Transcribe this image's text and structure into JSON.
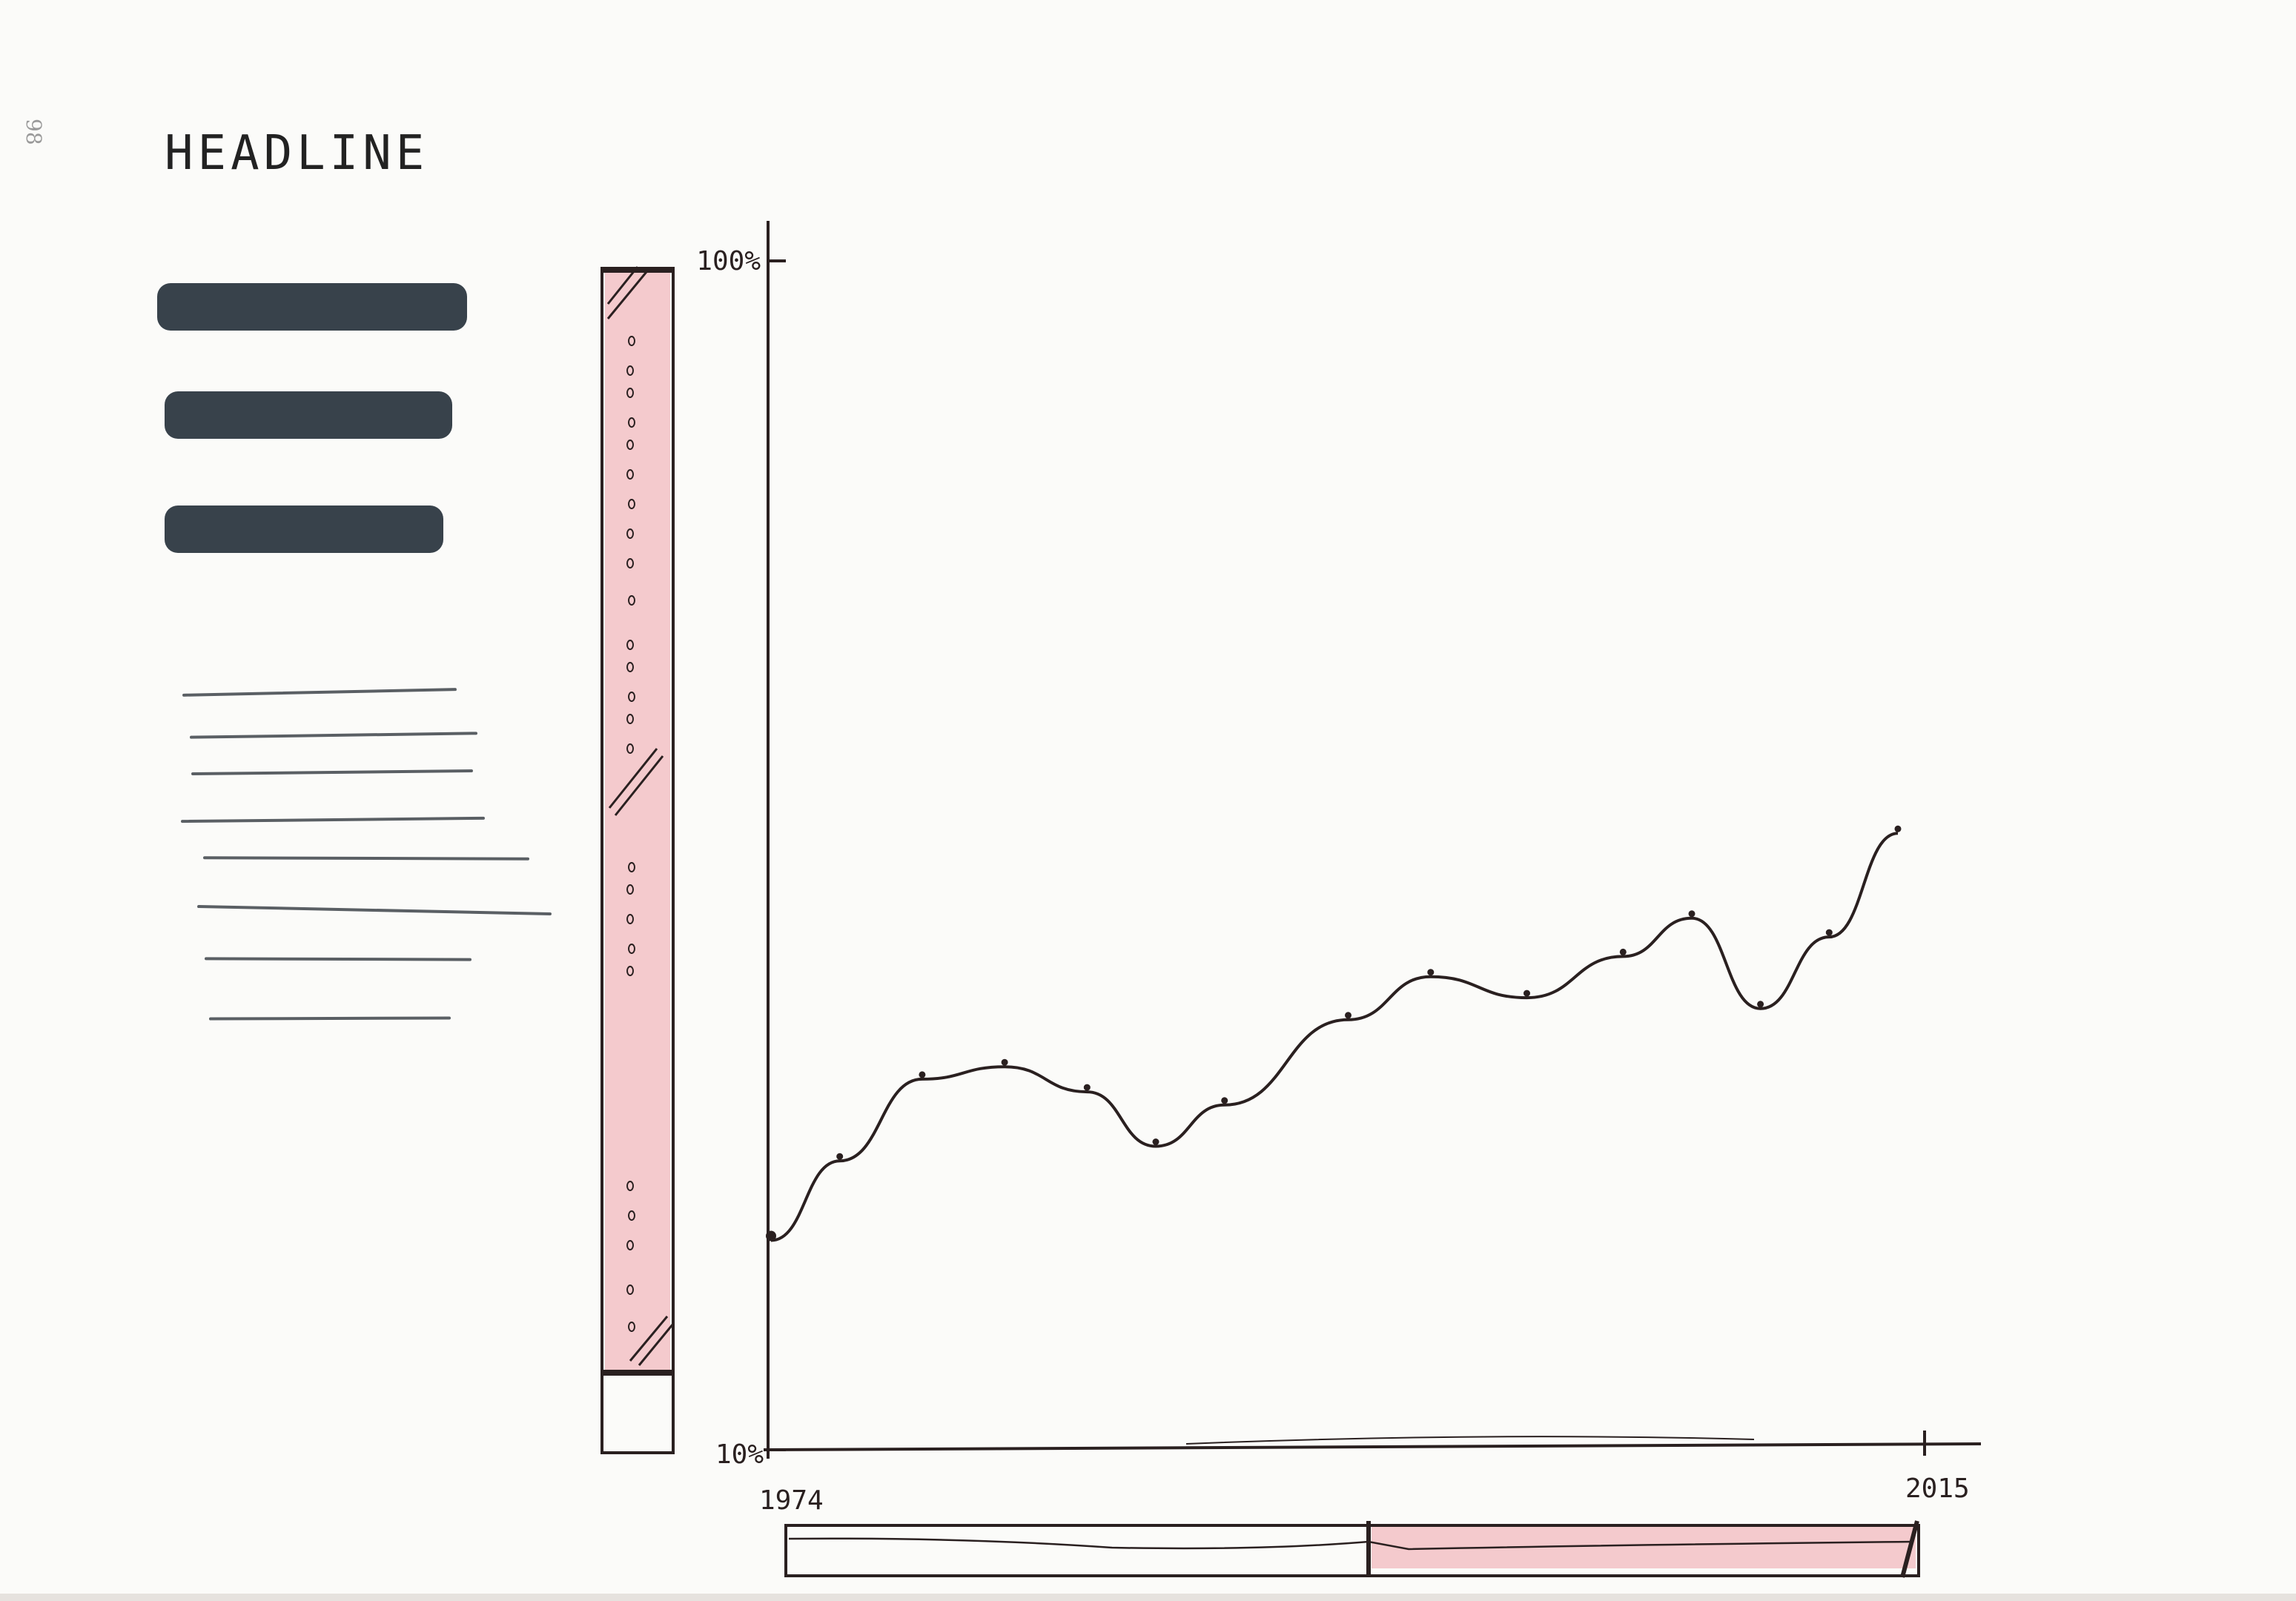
{
  "page_number": "98",
  "headline": "HEADLINE",
  "nav_buttons": [
    "button",
    "button",
    "button"
  ],
  "paragraph_lines": 8,
  "colors": {
    "ink": "#2a2020",
    "highlight": "#f2b9bd",
    "button": "#38424b"
  },
  "chart_data": {
    "type": "line",
    "y_top_label": "100%",
    "y_bottom_label": "10%",
    "x_start_label": "1974",
    "x_end_label": "2015",
    "y_scale": "log",
    "ylim": [
      10,
      100
    ],
    "xlim": [
      1974,
      2015
    ],
    "series": [
      {
        "x": [
          1974,
          1976.5,
          1979.5,
          1982.5,
          1985.5,
          1988,
          1990.5,
          1995,
          1998,
          2001.5,
          2005,
          2007.5,
          2010,
          2012.5,
          2015
        ],
        "values": [
          15,
          17.5,
          20.5,
          21,
          20,
          18,
          19.5,
          23,
          25,
          24,
          26,
          28,
          23.5,
          27,
          33
        ]
      }
    ]
  }
}
